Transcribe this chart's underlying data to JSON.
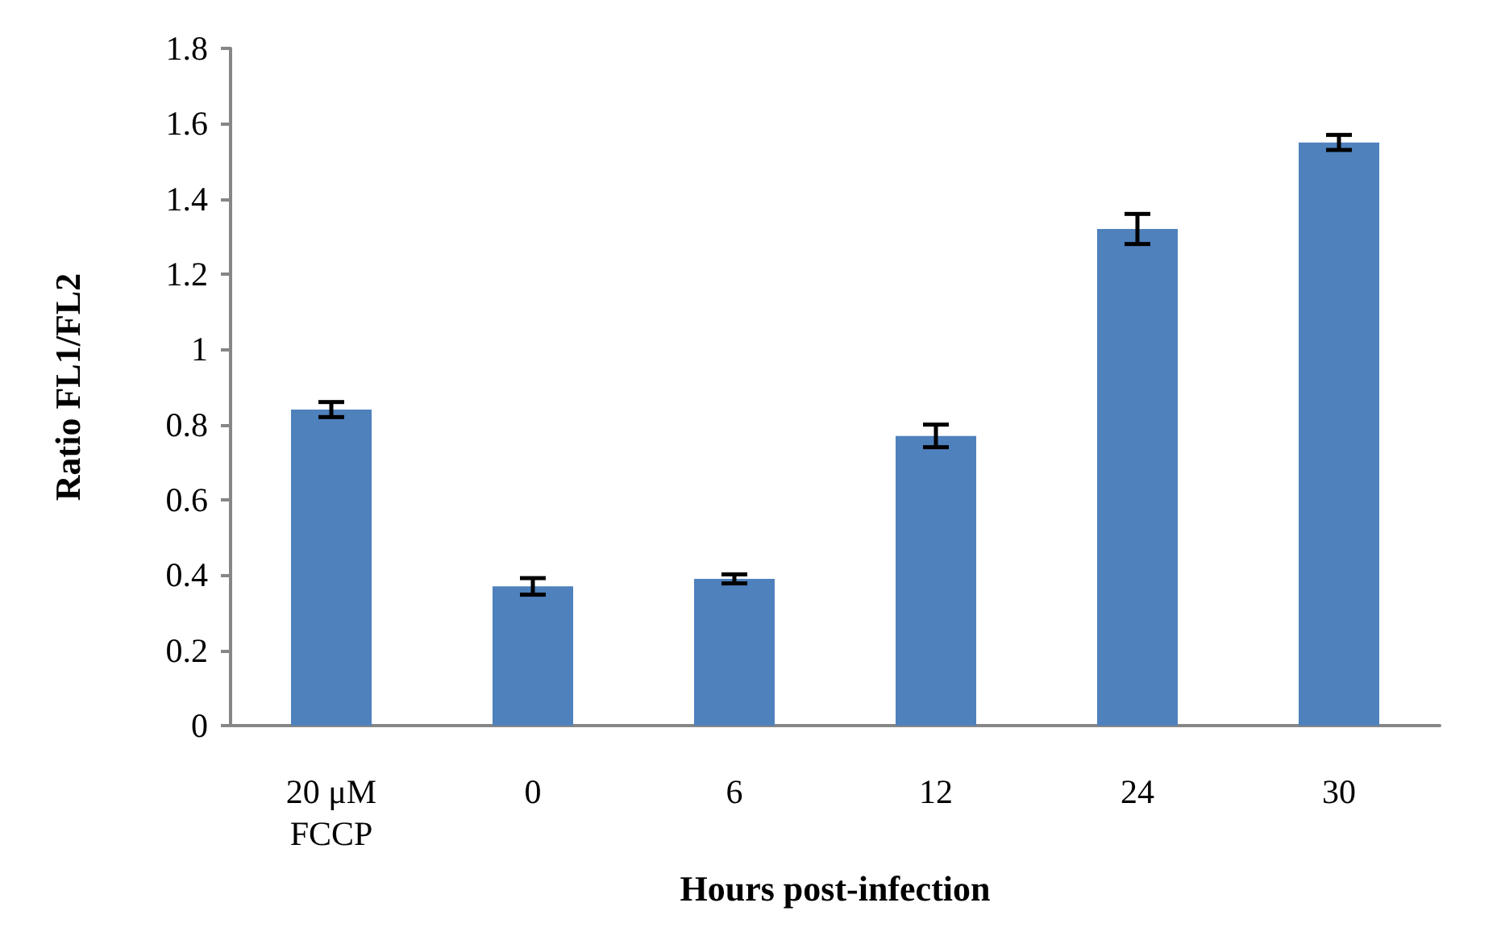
{
  "chart_data": {
    "type": "bar",
    "xlabel": "Hours post-infection",
    "ylabel": "Ratio FL1/FL2",
    "categories": [
      "20 μM\nFCCP",
      "0",
      "6",
      "12",
      "24",
      "30"
    ],
    "values": [
      0.84,
      0.37,
      0.39,
      0.77,
      1.32,
      1.55
    ],
    "errors": [
      0.02,
      0.022,
      0.012,
      0.03,
      0.04,
      0.02
    ],
    "color": "#4f81bd",
    "ylim": [
      0,
      1.8
    ],
    "yticks": [
      0,
      0.2,
      0.4,
      0.6,
      0.8,
      1,
      1.2,
      1.4,
      1.6,
      1.8
    ],
    "grid": false
  }
}
